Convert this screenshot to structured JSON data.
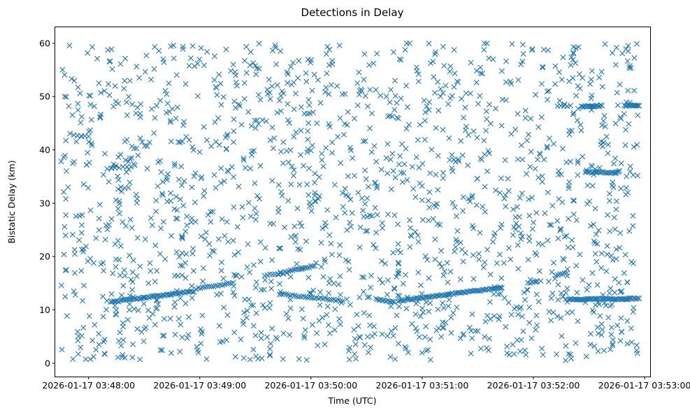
{
  "chart_data": {
    "type": "scatter",
    "title": "Detections in Delay",
    "xlabel": "Time (UTC)",
    "ylabel": "Bistatic Delay (km)",
    "x_unit": "datetime",
    "xlim": [
      "2026-01-17 03:47:42",
      "2026-01-17 03:53:03"
    ],
    "ylim": [
      -2.5,
      63
    ],
    "x_ticks": [
      "2026-01-17 03:48:00",
      "2026-01-17 03:49:00",
      "2026-01-17 03:50:00",
      "2026-01-17 03:51:00",
      "2026-01-17 03:52:00",
      "2026-01-17 03:53:00"
    ],
    "y_ticks": [
      0,
      10,
      20,
      30,
      40,
      50,
      60
    ],
    "marker": "x",
    "series_color": "#1f77b4",
    "grid": false,
    "legend": "none",
    "tracks": [
      {
        "x_start": "2026-01-17 03:48:12",
        "x_end": "2026-01-17 03:48:57",
        "y_start": 11.5,
        "y_end": 13.5,
        "points": 55
      },
      {
        "x_start": "2026-01-17 03:48:58",
        "x_end": "2026-01-17 03:49:18",
        "y_start": 14.0,
        "y_end": 15.0,
        "points": 18
      },
      {
        "x_start": "2026-01-17 03:49:35",
        "x_end": "2026-01-17 03:49:45",
        "y_start": 16.5,
        "y_end": 16.8,
        "points": 8
      },
      {
        "x_start": "2026-01-17 03:49:45",
        "x_end": "2026-01-17 03:50:02",
        "y_start": 17.0,
        "y_end": 18.3,
        "points": 18
      },
      {
        "x_start": "2026-01-17 03:49:43",
        "x_end": "2026-01-17 03:50:17",
        "y_start": 13.0,
        "y_end": 11.7,
        "points": 30
      },
      {
        "x_start": "2026-01-17 03:50:35",
        "x_end": "2026-01-17 03:50:45",
        "y_start": 12.0,
        "y_end": 11.5,
        "points": 12
      },
      {
        "x_start": "2026-01-17 03:50:47",
        "x_end": "2026-01-17 03:51:43",
        "y_start": 11.7,
        "y_end": 14.2,
        "points": 70
      },
      {
        "x_start": "2026-01-17 03:51:57",
        "x_end": "2026-01-17 03:52:02",
        "y_start": 15.0,
        "y_end": 15.4,
        "points": 5
      },
      {
        "x_start": "2026-01-17 03:52:12",
        "x_end": "2026-01-17 03:52:18",
        "y_start": 16.5,
        "y_end": 17.0,
        "points": 6
      },
      {
        "x_start": "2026-01-17 03:52:19",
        "x_end": "2026-01-17 03:52:57",
        "y_start": 12.0,
        "y_end": 12.1,
        "points": 55
      },
      {
        "x_start": "2026-01-17 03:52:26",
        "x_end": "2026-01-17 03:52:37",
        "y_start": 48.1,
        "y_end": 48.3,
        "points": 18
      },
      {
        "x_start": "2026-01-17 03:52:49",
        "x_end": "2026-01-17 03:52:57",
        "y_start": 48.3,
        "y_end": 48.4,
        "points": 14
      },
      {
        "x_start": "2026-01-17 03:52:28",
        "x_end": "2026-01-17 03:52:46",
        "y_start": 35.8,
        "y_end": 35.8,
        "points": 22
      },
      {
        "x_start": "2026-01-17 03:48:10",
        "x_end": "2026-01-17 03:48:25",
        "y_start": 36.5,
        "y_end": 37.0,
        "points": 8
      },
      {
        "x_start": "2026-01-17 03:47:50",
        "x_end": "2026-01-17 03:48:00",
        "y_start": 43.0,
        "y_end": 42.5,
        "points": 6
      },
      {
        "x_start": "2026-01-17 03:52:13",
        "x_end": "2026-01-17 03:52:20",
        "y_start": 48.2,
        "y_end": 48.2,
        "points": 5
      }
    ],
    "clutter": {
      "x_range": [
        "2026-01-17 03:47:45",
        "2026-01-17 03:52:57"
      ],
      "y_range": [
        0.5,
        60
      ],
      "points": 1650
    }
  }
}
